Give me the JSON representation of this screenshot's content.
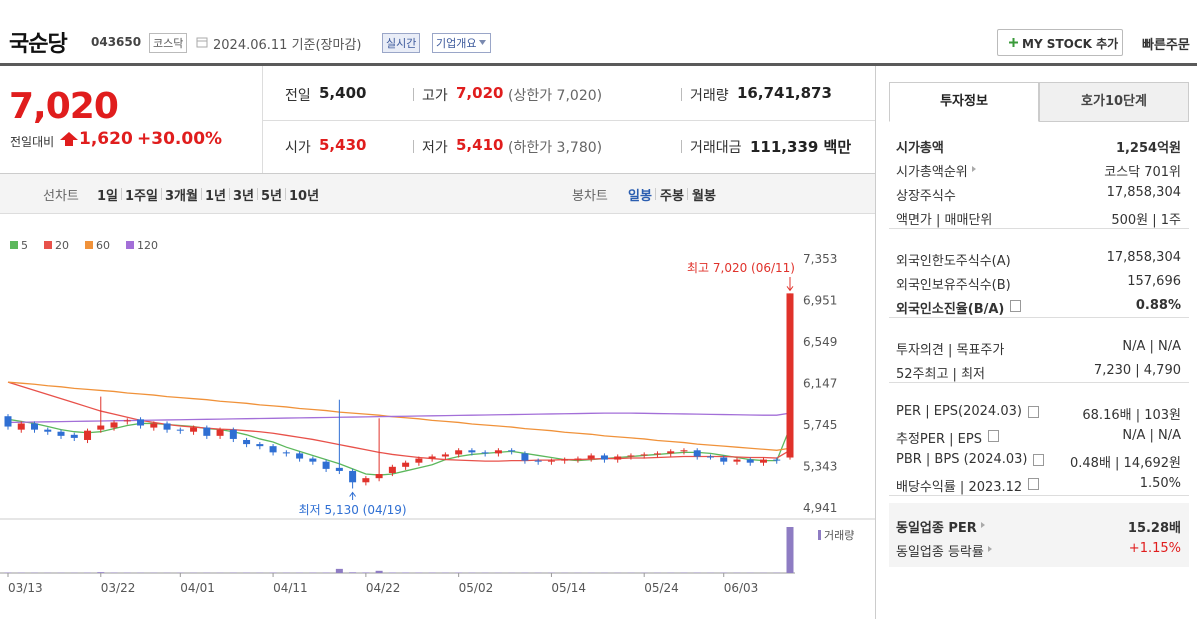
{
  "header": {
    "name": "국순당",
    "code": "043650",
    "market": "코스닥",
    "date": "2024.06.11 기준(장마감)",
    "realtime": "실시간",
    "company_info": "기업개요",
    "my_stock": "MY STOCK 추가",
    "quick_order": "빠른주문"
  },
  "quote": {
    "price": "7,020",
    "change_label": "전일대비",
    "change": "1,620",
    "change_rate": "+30.00%",
    "fields": [
      {
        "label": "전일",
        "value": "5,400"
      },
      {
        "label": "고가",
        "value": "7,020",
        "note": "(상한가 7,020)",
        "color": "#e01d1d"
      },
      {
        "label": "거래량",
        "value": "16,741,873"
      },
      {
        "label": "시가",
        "value": "5,430",
        "color": "#e01d1d"
      },
      {
        "label": "저가",
        "value": "5,410",
        "note": "(하한가 3,780)",
        "color": "#e01d1d"
      },
      {
        "label": "거래대금",
        "value": "111,339 백만"
      }
    ]
  },
  "toolbar": {
    "line_label": "선차트",
    "line_periods": [
      "1일",
      "1주일",
      "3개월",
      "1년",
      "3년",
      "5년",
      "10년"
    ],
    "candle_label": "봉차트",
    "candle_periods": [
      "일봉",
      "주봉",
      "월봉"
    ],
    "active_candle_period": 0
  },
  "chart_data": {
    "type": "candlestick",
    "up_color": "#e0322b",
    "down_color": "#2f6fd3",
    "categories": [
      "03/13",
      null,
      null,
      null,
      null,
      null,
      null,
      "03/22",
      null,
      null,
      null,
      null,
      null,
      "04/01",
      null,
      null,
      null,
      null,
      null,
      null,
      "04/11",
      null,
      null,
      null,
      null,
      null,
      null,
      "04/22",
      null,
      null,
      null,
      null,
      null,
      null,
      "05/02",
      null,
      null,
      null,
      null,
      null,
      null,
      "05/14",
      null,
      null,
      null,
      null,
      null,
      null,
      "05/24",
      null,
      null,
      null,
      null,
      null,
      "06/03",
      null,
      null,
      null,
      null,
      null
    ],
    "open": [
      5830,
      5700,
      5760,
      5700,
      5680,
      5650,
      5600,
      5700,
      5720,
      5780,
      5800,
      5720,
      5760,
      5700,
      5680,
      5720,
      5640,
      5700,
      5600,
      5560,
      5540,
      5480,
      5470,
      5420,
      5390,
      5330,
      5300,
      5190,
      5230,
      5280,
      5340,
      5380,
      5420,
      5440,
      5460,
      5500,
      5480,
      5470,
      5500,
      5470,
      5400,
      5390,
      5400,
      5410,
      5420,
      5450,
      5410,
      5440,
      5450,
      5460,
      5470,
      5490,
      5500,
      5440,
      5430,
      5390,
      5410,
      5380,
      5410,
      5430
    ],
    "high": [
      5850,
      5780,
      5780,
      5720,
      5700,
      5670,
      5710,
      6020,
      5790,
      5810,
      5820,
      5780,
      5780,
      5720,
      5740,
      5740,
      5720,
      5720,
      5620,
      5580,
      5560,
      5500,
      5490,
      5440,
      5410,
      5990,
      5320,
      5250,
      5810,
      5360,
      5400,
      5440,
      5460,
      5480,
      5520,
      5520,
      5500,
      5520,
      5520,
      5490,
      5420,
      5420,
      5430,
      5440,
      5470,
      5470,
      5460,
      5470,
      5480,
      5490,
      5510,
      5520,
      5520,
      5460,
      5450,
      5430,
      5430,
      5430,
      5430,
      7020
    ],
    "low": [
      5700,
      5670,
      5670,
      5650,
      5610,
      5590,
      5570,
      5670,
      5690,
      5750,
      5710,
      5690,
      5670,
      5660,
      5650,
      5610,
      5610,
      5580,
      5530,
      5510,
      5450,
      5440,
      5390,
      5360,
      5290,
      5270,
      5130,
      5160,
      5200,
      5250,
      5310,
      5350,
      5390,
      5410,
      5430,
      5450,
      5440,
      5440,
      5460,
      5370,
      5360,
      5360,
      5370,
      5380,
      5390,
      5380,
      5380,
      5410,
      5420,
      5430,
      5440,
      5460,
      5410,
      5410,
      5360,
      5360,
      5350,
      5350,
      5370,
      5410
    ],
    "close": [
      5730,
      5760,
      5700,
      5680,
      5640,
      5620,
      5690,
      5740,
      5770,
      5790,
      5740,
      5760,
      5700,
      5690,
      5720,
      5640,
      5700,
      5610,
      5560,
      5540,
      5480,
      5470,
      5420,
      5390,
      5320,
      5300,
      5190,
      5230,
      5270,
      5340,
      5380,
      5420,
      5440,
      5460,
      5500,
      5480,
      5470,
      5500,
      5490,
      5400,
      5390,
      5400,
      5410,
      5420,
      5450,
      5410,
      5440,
      5450,
      5460,
      5470,
      5490,
      5500,
      5440,
      5430,
      5390,
      5410,
      5380,
      5410,
      5400,
      7020
    ],
    "moving_averages": [
      {
        "name": "5",
        "color": "#5cb85c",
        "values": [
          5800,
          5780,
          5760,
          5730,
          5700,
          5680,
          5670,
          5680,
          5710,
          5740,
          5760,
          5760,
          5750,
          5740,
          5730,
          5710,
          5700,
          5680,
          5650,
          5610,
          5580,
          5530,
          5490,
          5450,
          5410,
          5370,
          5320,
          5270,
          5260,
          5270,
          5300,
          5330,
          5360,
          5410,
          5440,
          5460,
          5470,
          5480,
          5490,
          5470,
          5450,
          5430,
          5410,
          5400,
          5410,
          5420,
          5430,
          5440,
          5450,
          5460,
          5470,
          5480,
          5480,
          5470,
          5450,
          5430,
          5410,
          5400,
          5400,
          5720
        ]
      },
      {
        "name": "20",
        "color": "#e8514a",
        "values": [
          6160,
          6120,
          6080,
          6040,
          6000,
          5960,
          5920,
          5880,
          5850,
          5820,
          5790,
          5770,
          5750,
          5735,
          5725,
          5715,
          5705,
          5700,
          5690,
          5680,
          5665,
          5645,
          5625,
          5605,
          5580,
          5555,
          5530,
          5505,
          5480,
          5460,
          5445,
          5430,
          5420,
          5410,
          5405,
          5400,
          5395,
          5395,
          5400,
          5400,
          5405,
          5405,
          5410,
          5410,
          5415,
          5420,
          5420,
          5425,
          5425,
          5430,
          5435,
          5440,
          5440,
          5440,
          5440,
          5435,
          5430,
          5430,
          5425,
          5500
        ]
      },
      {
        "name": "60",
        "color": "#f0923a",
        "values": [
          6160,
          6150,
          6140,
          6125,
          6115,
          6100,
          6090,
          6080,
          6070,
          6055,
          6045,
          6035,
          6020,
          6010,
          6000,
          5990,
          5975,
          5965,
          5955,
          5940,
          5930,
          5920,
          5905,
          5895,
          5885,
          5870,
          5860,
          5850,
          5840,
          5825,
          5815,
          5805,
          5790,
          5780,
          5770,
          5755,
          5745,
          5735,
          5725,
          5710,
          5700,
          5690,
          5675,
          5665,
          5655,
          5640,
          5630,
          5620,
          5610,
          5595,
          5585,
          5575,
          5560,
          5550,
          5540,
          5530,
          5520,
          5510,
          5500,
          5520
        ]
      },
      {
        "name": "120",
        "color": "#a36fd8",
        "values": [
          5770,
          5772,
          5774,
          5776,
          5778,
          5780,
          5782,
          5784,
          5786,
          5788,
          5790,
          5792,
          5794,
          5796,
          5798,
          5800,
          5802,
          5804,
          5806,
          5808,
          5810,
          5812,
          5814,
          5816,
          5818,
          5820,
          5822,
          5824,
          5826,
          5828,
          5830,
          5832,
          5834,
          5836,
          5838,
          5840,
          5842,
          5844,
          5846,
          5848,
          5850,
          5852,
          5854,
          5856,
          5858,
          5860,
          5860,
          5860,
          5858,
          5856,
          5854,
          5852,
          5850,
          5848,
          5846,
          5844,
          5842,
          5840,
          5840,
          5860
        ]
      }
    ],
    "volume": {
      "name": "거래량",
      "color": "#8e7cc3",
      "values": [
        150000,
        120000,
        110000,
        90000,
        100000,
        95000,
        130000,
        300000,
        140000,
        120000,
        110000,
        100000,
        90000,
        95000,
        100000,
        110000,
        90000,
        120000,
        130000,
        110000,
        150000,
        120000,
        130000,
        140000,
        160000,
        1500000,
        250000,
        200000,
        800000,
        180000,
        170000,
        150000,
        140000,
        130000,
        150000,
        120000,
        110000,
        100000,
        90000,
        130000,
        110000,
        100000,
        90000,
        95000,
        100000,
        110000,
        90000,
        100000,
        95000,
        100000,
        110000,
        120000,
        130000,
        100000,
        120000,
        110000,
        100000,
        90000,
        110000,
        16741873
      ]
    },
    "ylim": [
      4941,
      7353
    ],
    "yticks": [
      {
        "value": 4941,
        "label": "4,941"
      },
      {
        "value": 5343,
        "label": "5,343"
      },
      {
        "value": 5745,
        "label": "5,745"
      },
      {
        "value": 6147,
        "label": "6,147"
      },
      {
        "value": 6549,
        "label": "6,549"
      },
      {
        "value": 6951,
        "label": "6,951"
      },
      {
        "value": 7353,
        "label": "7,353"
      }
    ],
    "high_label": "최고 7,020 (06/11)",
    "low_label": "최저 5,130 (04/19)"
  },
  "info_panel": {
    "tabs": [
      "투자정보",
      "호가10단계"
    ],
    "groups": [
      {
        "rows": [
          {
            "label": "시가총액",
            "value": "1,254억원",
            "bold": true
          },
          {
            "label": "시가총액순위",
            "value": "코스닥 701위",
            "arrow": true
          },
          {
            "label": "상장주식수",
            "value": "17,858,304"
          },
          {
            "label": "액면가 | 매매단위",
            "value": "500원 | 1주"
          }
        ]
      },
      {
        "rows": [
          {
            "label": "외국인한도주식수(A)",
            "value": "17,858,304"
          },
          {
            "label": "외국인보유주식수(B)",
            "value": "157,696"
          },
          {
            "label": "외국인소진율(B/A)",
            "value": "0.88%",
            "bold": true,
            "help": true
          }
        ]
      },
      {
        "rows": [
          {
            "label": "투자의견 | 목표주가",
            "value": "N/A | N/A"
          },
          {
            "label": "52주최고 | 최저",
            "value": "7,230 | 4,790"
          }
        ]
      },
      {
        "rows": [
          {
            "label": "PER | EPS(2024.03)",
            "value": "68.16배 | 103원",
            "help": true
          },
          {
            "label": "추정PER | EPS",
            "value": "N/A | N/A",
            "help": true
          },
          {
            "label": "PBR | BPS (2024.03)",
            "value": "0.48배 | 14,692원",
            "help": true
          },
          {
            "label": "배당수익률 | 2023.12",
            "value": "1.50%",
            "help": true
          }
        ]
      },
      {
        "shaded": true,
        "rows": [
          {
            "label": "동일업종 PER",
            "value": "15.28배",
            "arrow": true,
            "bold": true
          },
          {
            "label": "동일업종 등락률",
            "value": "+1.15%",
            "arrow": true,
            "color": "#e01d1d"
          }
        ]
      }
    ]
  }
}
